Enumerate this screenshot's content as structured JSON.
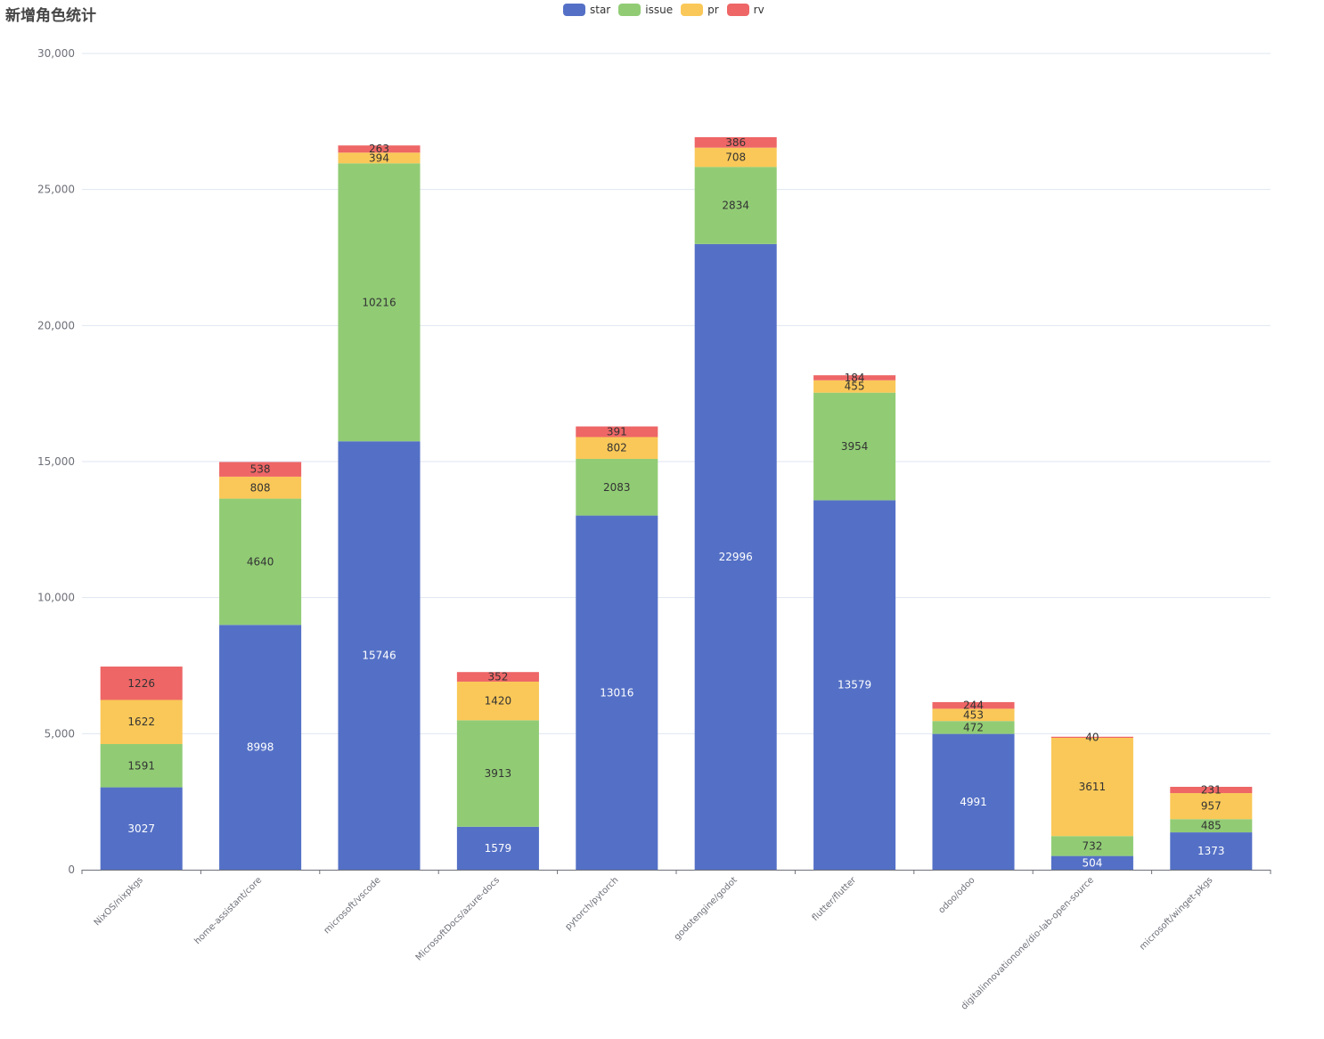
{
  "chart_data": {
    "type": "bar",
    "stacked": true,
    "title": "新增角色统计",
    "categories": [
      "NixOS/nixpkgs",
      "home-assistant/core",
      "microsoft/vscode",
      "MicrosoftDocs/azure-docs",
      "pytorch/pytorch",
      "godotengine/godot",
      "flutter/flutter",
      "odoo/odoo",
      "digitalinnovationone/dio-lab-open-source",
      "microsoft/winget-pkgs"
    ],
    "series": [
      {
        "name": "star",
        "color": "#5470c6",
        "label_color": "#ffffff",
        "values": [
          3027,
          8998,
          15746,
          1579,
          13016,
          22996,
          13579,
          4991,
          504,
          1373
        ]
      },
      {
        "name": "issue",
        "color": "#91cc75",
        "label_color": "#333333",
        "values": [
          1591,
          4640,
          10216,
          3913,
          2083,
          2834,
          3954,
          472,
          732,
          485
        ]
      },
      {
        "name": "pr",
        "color": "#fac858",
        "label_color": "#333333",
        "values": [
          1622,
          808,
          394,
          1420,
          802,
          708,
          455,
          453,
          3611,
          957
        ]
      },
      {
        "name": "rv",
        "color": "#ee6666",
        "label_color": "#333333",
        "values": [
          1226,
          538,
          263,
          352,
          391,
          386,
          184,
          244,
          40,
          231
        ]
      }
    ],
    "ylim": [
      0,
      30000
    ],
    "yticks": [
      0,
      5000,
      10000,
      15000,
      20000,
      25000,
      30000
    ],
    "ytick_labels": [
      "0",
      "5,000",
      "10,000",
      "15,000",
      "20,000",
      "25,000",
      "30,000"
    ],
    "xlabel": "",
    "ylabel": "",
    "grid": true,
    "legend_position": "top-center"
  }
}
